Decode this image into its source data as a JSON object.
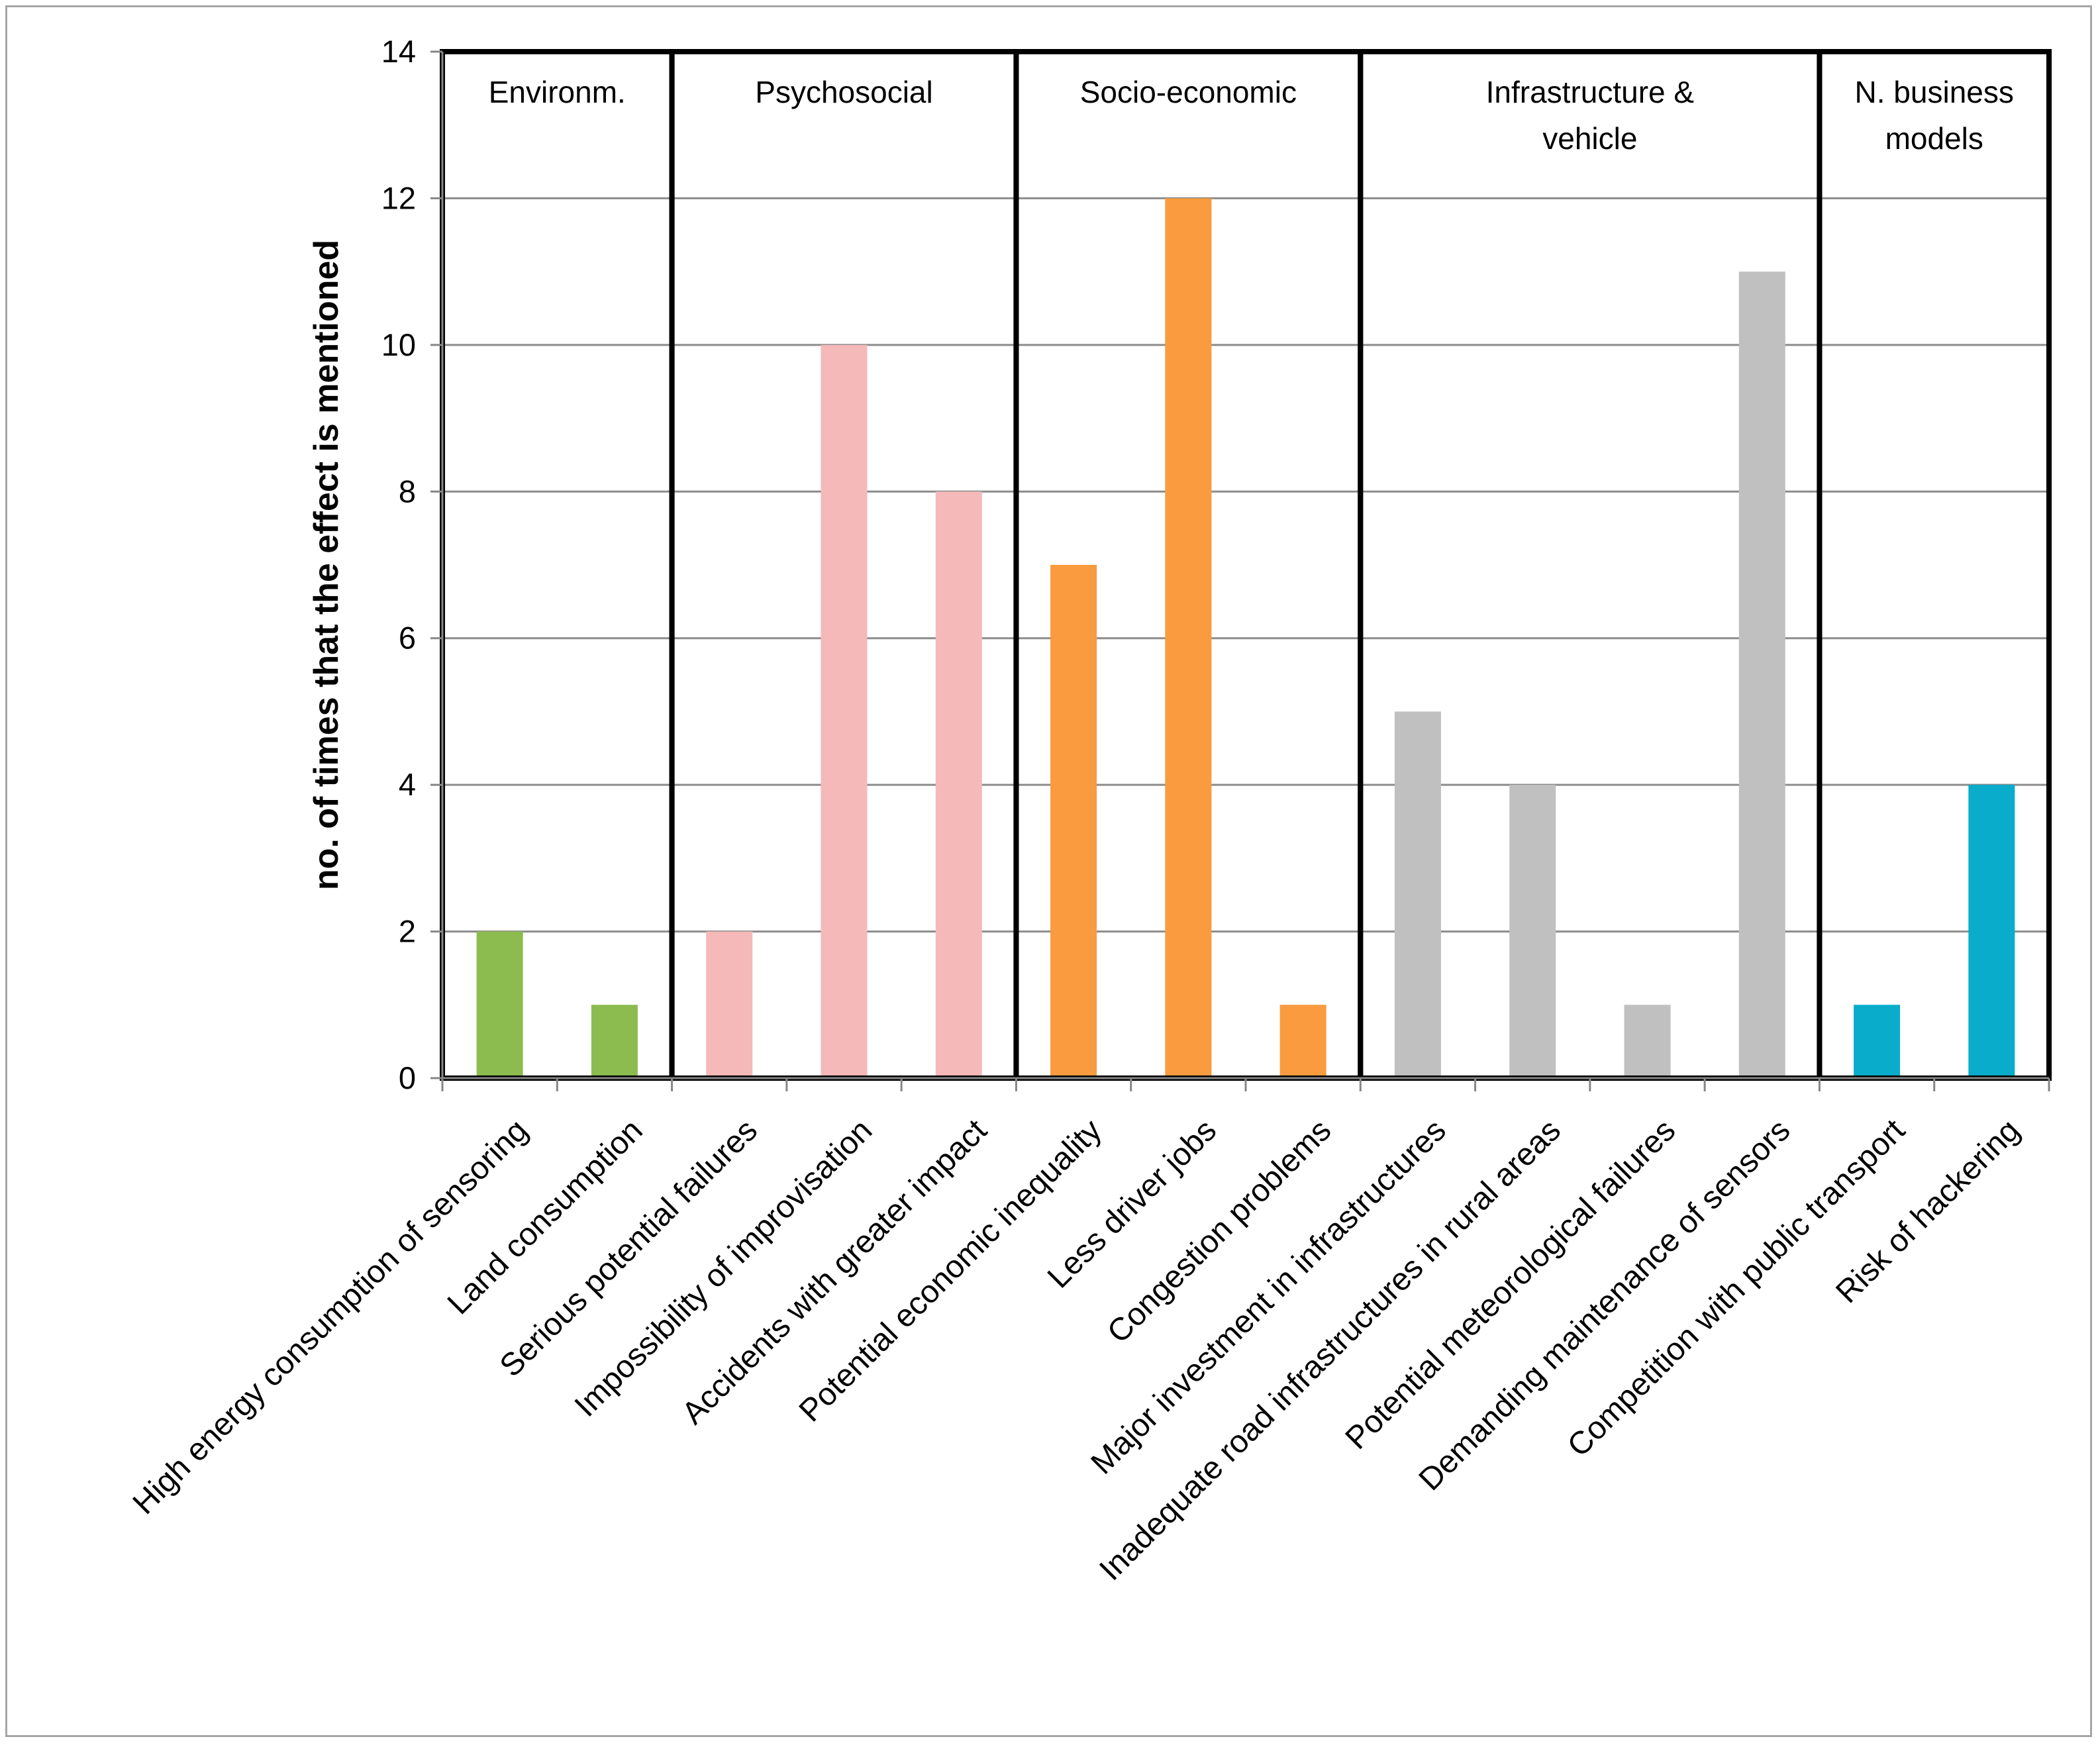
{
  "chart_data": {
    "type": "bar",
    "title": "",
    "xlabel": "",
    "ylabel": "no. of times that the effect is mentioned",
    "ylim": [
      0,
      14
    ],
    "yticks": [
      0,
      2,
      4,
      6,
      8,
      10,
      12,
      14
    ],
    "grid": true,
    "categories": [
      "High energy consumption of sensoring",
      "Land consumption",
      "Serious potential failures",
      "Impossibility of improvisation",
      "Accidents with greater impact",
      "Potential economic inequality",
      "Less driver jobs",
      "Congestion problems",
      "Major investment in infrastructures",
      "Inadequate road infrastructures in rural  areas",
      "Potential meteorological failures",
      "Demanding maintenance of sensors",
      "Competition with public transport",
      "Risk of hackering"
    ],
    "values": [
      2,
      1,
      2,
      10,
      8,
      7,
      12,
      1,
      5,
      4,
      1,
      11,
      1,
      4
    ],
    "groups": [
      {
        "label_lines": [
          "Environm."
        ],
        "start": 0,
        "end": 1,
        "color": "#8cbc50"
      },
      {
        "label_lines": [
          "Psychosocial"
        ],
        "start": 2,
        "end": 4,
        "color": "#f4b9b8"
      },
      {
        "label_lines": [
          "Socio-economic"
        ],
        "start": 5,
        "end": 7,
        "color": "#f99b3e"
      },
      {
        "label_lines": [
          "Infrastructure &",
          "vehicle"
        ],
        "start": 8,
        "end": 11,
        "color": "#c0c0c0"
      },
      {
        "label_lines": [
          "N. business",
          "models"
        ],
        "start": 12,
        "end": 13,
        "color": "#09accb"
      }
    ]
  }
}
